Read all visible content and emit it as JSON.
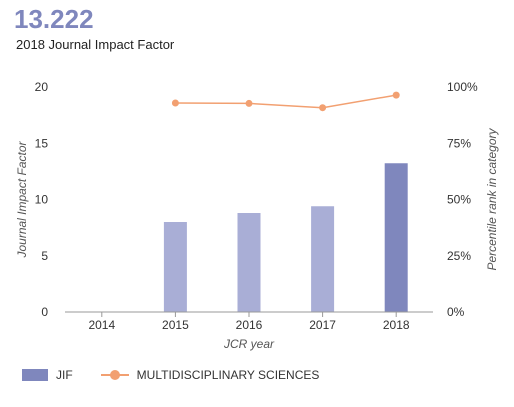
{
  "header": {
    "value": "13.222",
    "label": "2018 Journal Impact Factor"
  },
  "chart_data": {
    "type": "bar",
    "categories": [
      "2014",
      "2015",
      "2016",
      "2017",
      "2018"
    ],
    "xlabel": "JCR year",
    "ylabel": "Journal Impact Factor",
    "y2label": "Percentile rank in category",
    "ylim": [
      0,
      20
    ],
    "yticks": [
      0,
      5,
      10,
      15,
      20
    ],
    "y2lim": [
      0,
      100
    ],
    "y2ticks": [
      "0%",
      "25%",
      "50%",
      "75%",
      "100%"
    ],
    "grid": false,
    "legend_position": "bottom-left",
    "series": [
      {
        "name": "JIF",
        "type": "bar",
        "values": [
          null,
          8.0,
          8.8,
          9.4,
          13.222
        ],
        "colors": [
          "#a9aed6",
          "#a9aed6",
          "#a9aed6",
          "#a9aed6",
          "#7f87bd"
        ]
      },
      {
        "name": "MULTIDISCIPLINARY SCIENCES",
        "type": "line",
        "axis": "right",
        "values": [
          null,
          92.9,
          92.7,
          90.8,
          96.4
        ],
        "color": "#f2a071"
      }
    ]
  }
}
